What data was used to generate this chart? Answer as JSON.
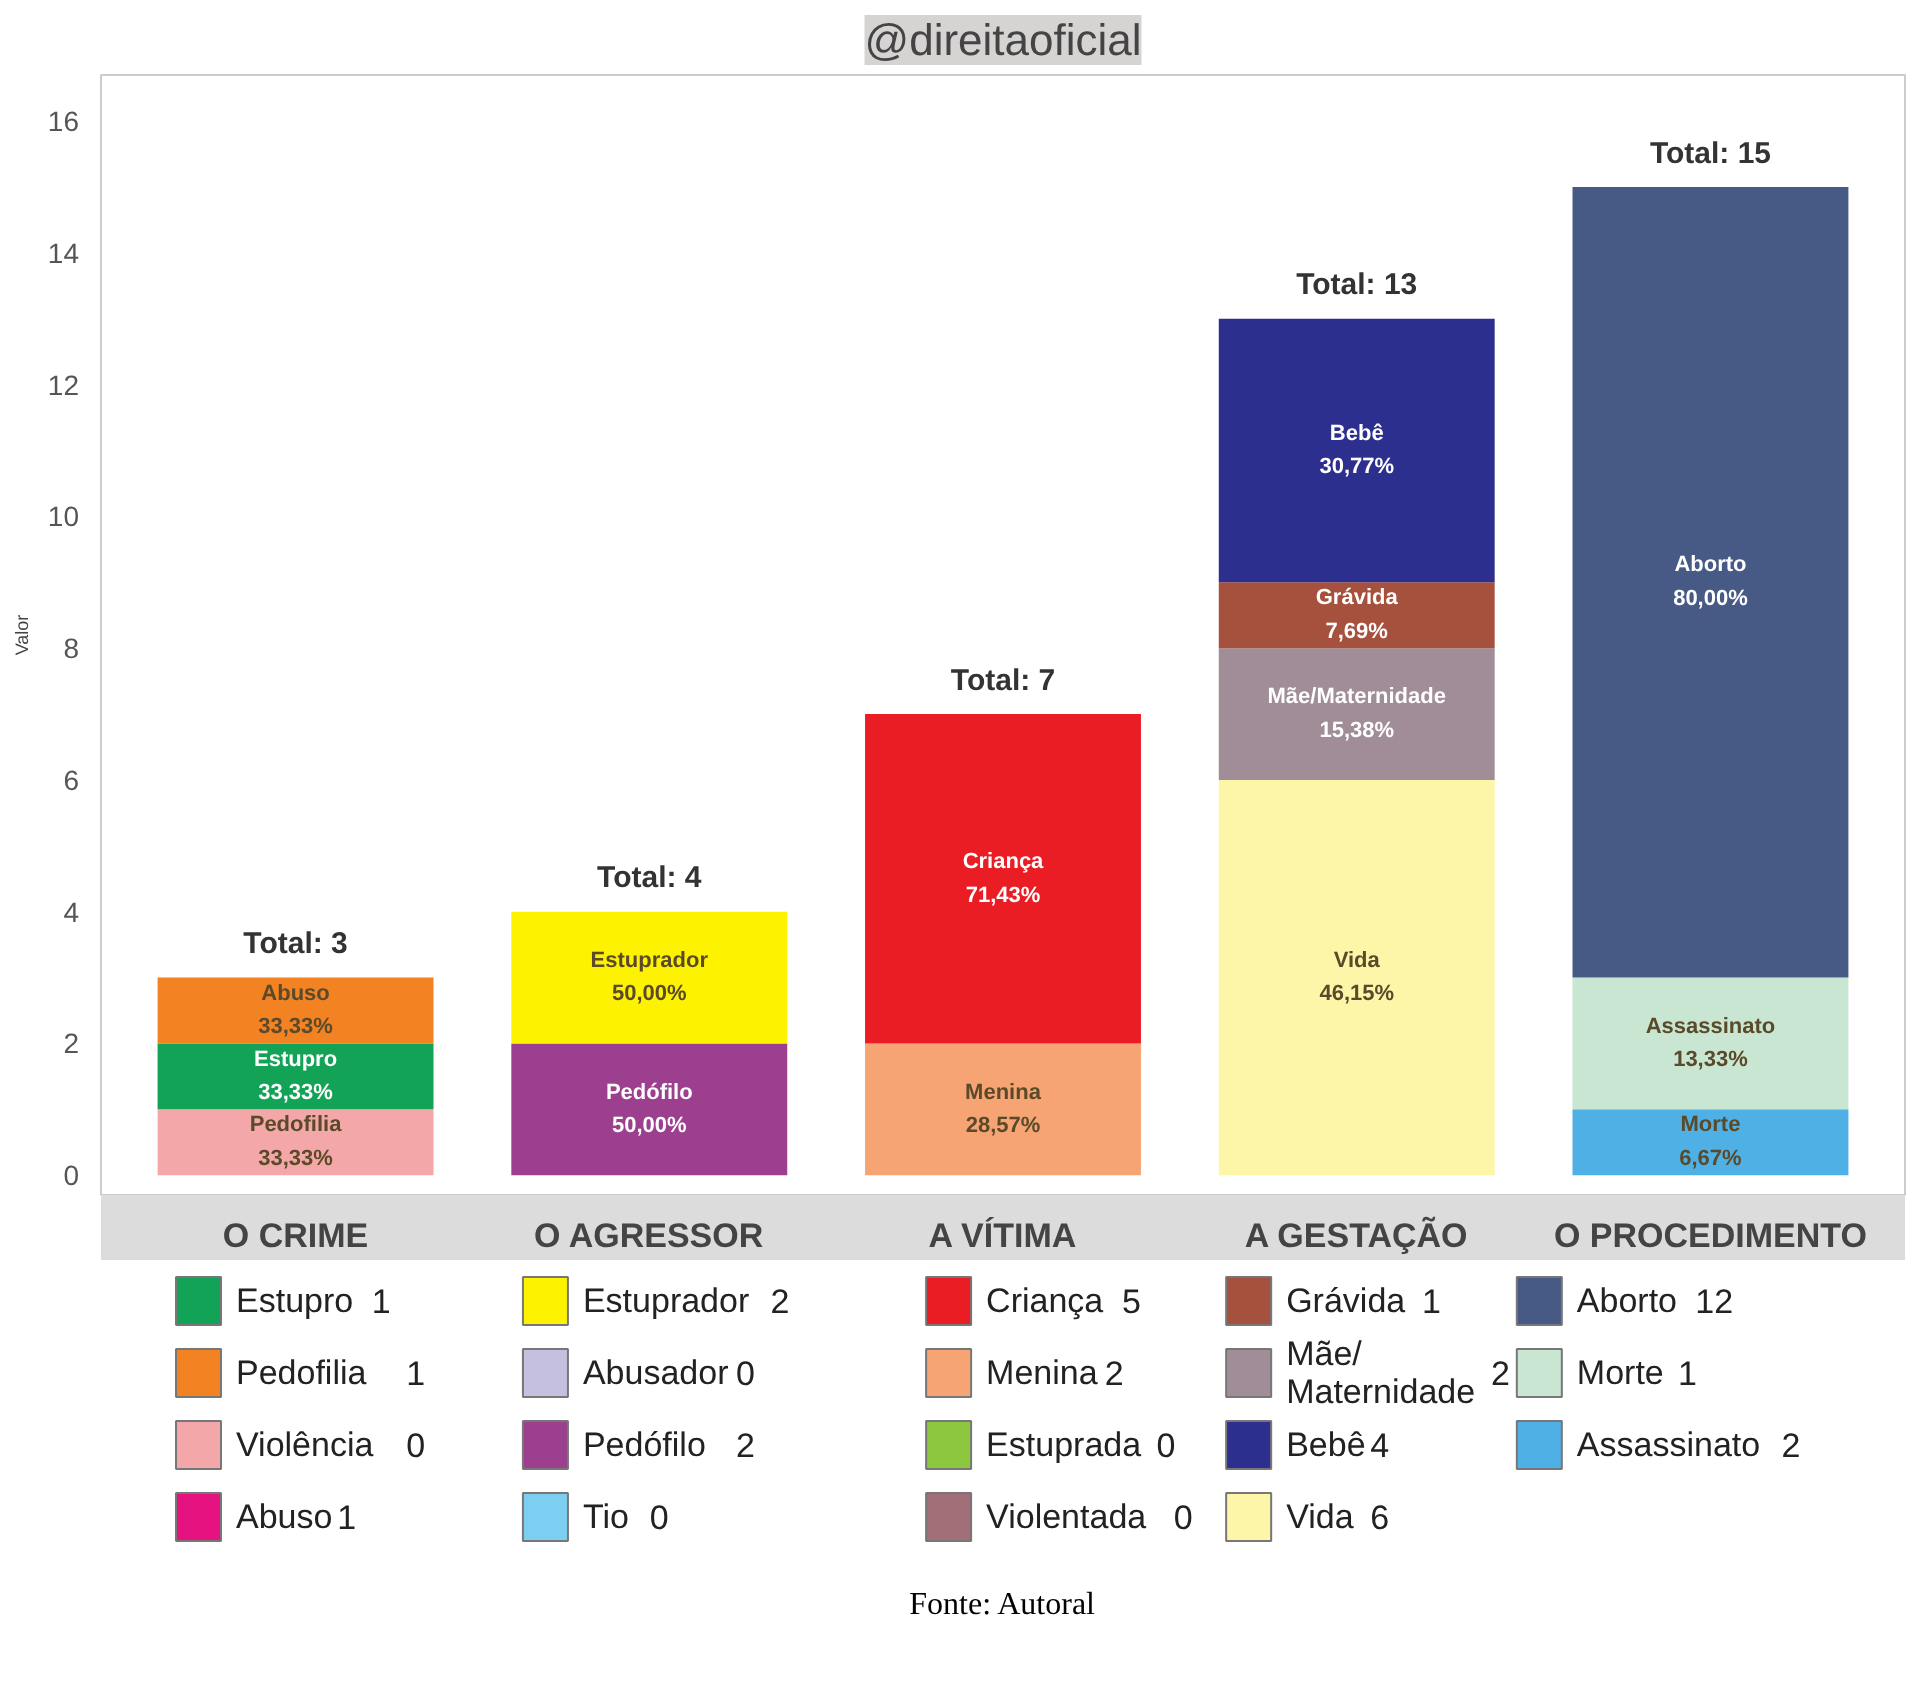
{
  "chart_data": [
    {
      "type": "bar",
      "title": "@direitaoficial",
      "ylabel": "Valor",
      "stacked": true,
      "categories": [
        "O CRIME",
        "O AGRESSOR",
        "A VÍTIMA",
        "A GESTAÇÃO",
        "O PROCEDIMENTO"
      ],
      "ylim": [
        -0.3,
        16.7
      ],
      "yticks": [
        0,
        2,
        4,
        6,
        8,
        10,
        12,
        14,
        16
      ],
      "series": [
        {
          "color": "#f4a7a9",
          "values": [
            1,
            null,
            null,
            null,
            null
          ],
          "value_labels": [
            "Pedofilia\n33,33%",
            null,
            null,
            null,
            null
          ]
        },
        {
          "color": "#12a356",
          "values": [
            1,
            null,
            null,
            null,
            null
          ],
          "value_labels": [
            "Estupro\n33,33%",
            null,
            null,
            null,
            null
          ]
        },
        {
          "color": "#f28222",
          "values": [
            1,
            null,
            null,
            null,
            null
          ],
          "value_labels": [
            "Abuso\n33,33%",
            null,
            null,
            null,
            null
          ]
        },
        {
          "color": "#9c3f8e",
          "values": [
            null,
            2,
            null,
            null,
            null
          ],
          "value_labels": [
            null,
            "Pedófilo\n50,00%",
            null,
            null,
            null
          ]
        },
        {
          "color": "#fdf200",
          "values": [
            null,
            2,
            null,
            null,
            null
          ],
          "value_labels": [
            null,
            "Estuprador\n50,00%",
            null,
            null,
            null
          ]
        },
        {
          "color": "#f6a473",
          "values": [
            null,
            null,
            2,
            null,
            null
          ],
          "value_labels": [
            null,
            null,
            "Menina\n28,57%",
            null,
            null
          ]
        },
        {
          "color": "#ea1c24",
          "values": [
            null,
            null,
            5,
            null,
            null
          ],
          "value_labels": [
            null,
            null,
            "Criança\n71,43%",
            null,
            null
          ]
        },
        {
          "color": "#fdf5a8",
          "values": [
            null,
            null,
            null,
            6,
            null
          ],
          "value_labels": [
            null,
            null,
            null,
            "Vida\n46,15%",
            null
          ]
        },
        {
          "color": "#a08d98",
          "values": [
            null,
            null,
            null,
            2,
            null
          ],
          "value_labels": [
            null,
            null,
            null,
            "Mãe/Maternidade\n15,38%",
            null
          ]
        },
        {
          "color": "#a6513e",
          "values": [
            null,
            null,
            null,
            1,
            null
          ],
          "value_labels": [
            null,
            null,
            null,
            "Grávida\n7,69%",
            null
          ]
        },
        {
          "color": "#2c2f8e",
          "values": [
            null,
            null,
            null,
            4,
            null
          ],
          "value_labels": [
            null,
            null,
            null,
            "Bebê\n30,77%",
            null
          ]
        },
        {
          "color": "#4eb0e4",
          "values": [
            null,
            null,
            null,
            null,
            1
          ],
          "value_labels": [
            null,
            null,
            null,
            null,
            "Morte\n6,67%"
          ]
        },
        {
          "color": "#c8e6d2",
          "values": [
            null,
            null,
            null,
            null,
            2
          ],
          "value_labels": [
            null,
            null,
            null,
            null,
            "Assassinato\n13,33%"
          ]
        },
        {
          "color": "#475a86",
          "values": [
            null,
            null,
            null,
            null,
            12
          ],
          "value_labels": [
            null,
            null,
            null,
            null,
            "Aborto\n80,00%"
          ]
        }
      ],
      "totals": [
        "Total: 3",
        "Total: 4",
        "Total: 7",
        "Total: 13",
        "Total: 15"
      ]
    },
    {
      "type": "other",
      "data_labels": true,
      "categories": [
        "Estupro",
        "Pedofilia",
        "Violência",
        "Abuso",
        "Estuprador",
        "Abusador",
        "Pedófilo",
        "Tio",
        "Criança",
        "Menina",
        "Estuprada",
        "Violentada",
        "Grávida",
        "Mãe/Maternidade",
        "Bebê",
        "Vida",
        "Aborto",
        "Morte",
        "Assassinato"
      ],
      "values": [
        1,
        1,
        0,
        1,
        2,
        0,
        2,
        0,
        5,
        2,
        0,
        0,
        1,
        2,
        4,
        6,
        12,
        1,
        2
      ],
      "colors": [
        "#12a356",
        "#f28222",
        "#f4a7a9",
        "#e5127f",
        "#fdf200",
        "#c5c0e0",
        "#9c3f8e",
        "#7dcff2",
        "#ea1c24",
        "#f6a473",
        "#8dc63f",
        "#a26e78",
        "#a6513e",
        "#a08d98",
        "#2c2f8e",
        "#fdf5a8",
        "#475a86",
        "#c8e6d2",
        "#4eb0e4"
      ],
      "annotations": [
        "Fonte: Autoral"
      ]
    }
  ]
}
